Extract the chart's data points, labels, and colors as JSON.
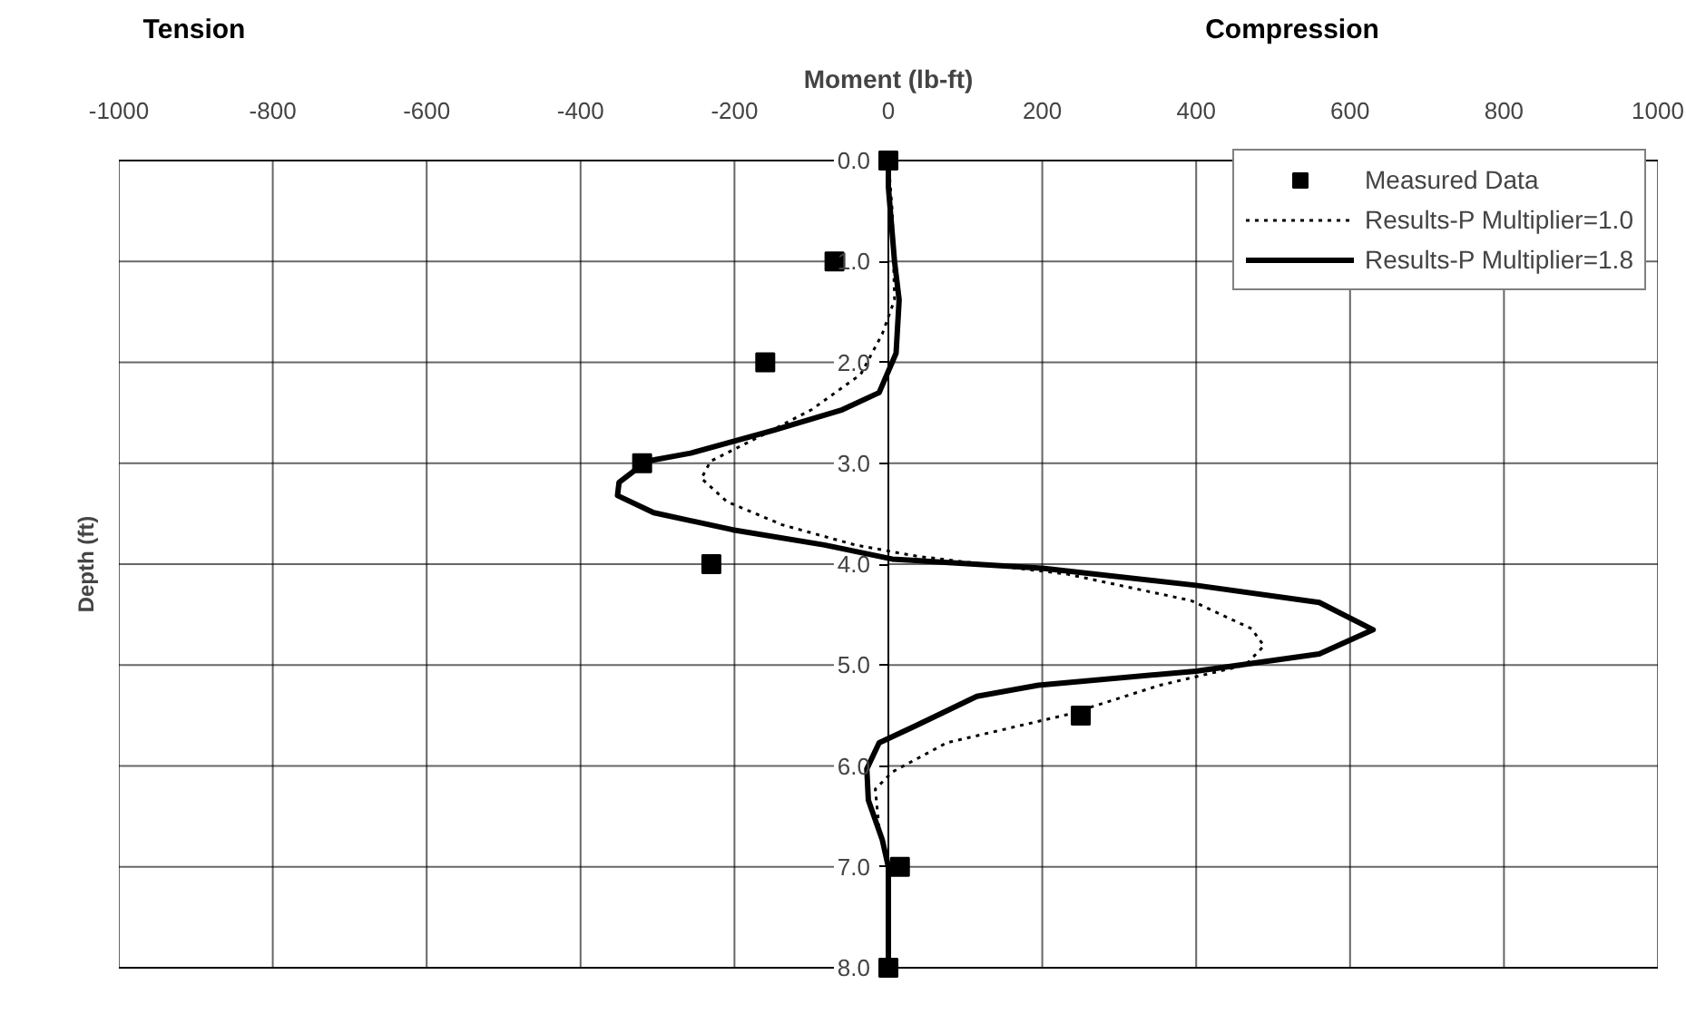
{
  "chart_data": {
    "type": "line",
    "xlabel": "Moment (lb-ft)",
    "ylabel": "Depth (ft)",
    "annotations": [
      "Tension",
      "Compression"
    ],
    "xlim": [
      -1000,
      1000
    ],
    "xticks": [
      -1000,
      -800,
      -600,
      -400,
      -200,
      0,
      200,
      400,
      600,
      800,
      1000
    ],
    "ylim": [
      8,
      0
    ],
    "yticks": [
      {
        "value": 0,
        "label": "0.0"
      },
      {
        "value": 1,
        "label": "1.0"
      },
      {
        "value": 2,
        "label": "2.0"
      },
      {
        "value": 3,
        "label": "3.0"
      },
      {
        "value": 4,
        "label": "4.0"
      },
      {
        "value": 5,
        "label": "5.0"
      },
      {
        "value": 6,
        "label": "6.0"
      },
      {
        "value": 7,
        "label": "7.0"
      },
      {
        "value": 8,
        "label": "8.0"
      }
    ],
    "grid": true,
    "legend": "top right",
    "series": [
      {
        "name": "Measured Data",
        "type": "scatter",
        "marker": "square",
        "color": "#000000",
        "x": [
          0,
          -70,
          -160,
          -320,
          -230,
          250,
          15,
          0
        ],
        "values": [
          0,
          1,
          2,
          3,
          4,
          5.5,
          7,
          8
        ]
      },
      {
        "name": "Results-P Multiplier=1.0",
        "line_style": "dotted",
        "color": "#000000",
        "x": [
          0,
          5,
          8,
          -8,
          -36,
          -100,
          -171,
          -231,
          -243,
          -210,
          -138,
          -43,
          36,
          233,
          393,
          472,
          488,
          464,
          353,
          233,
          76,
          5,
          -17,
          -12,
          0,
          0
        ],
        "values": [
          0,
          0.5,
          1.38,
          1.72,
          2.12,
          2.47,
          2.75,
          2.98,
          3.15,
          3.38,
          3.61,
          3.81,
          3.92,
          4.1,
          4.36,
          4.64,
          4.81,
          5.0,
          5.2,
          5.49,
          5.77,
          6.06,
          6.23,
          6.62,
          7.0,
          8.0
        ]
      },
      {
        "name": "Results-P Multiplier=1.8",
        "line_style": "solid",
        "color": "#000000",
        "x": [
          0,
          0,
          8,
          14,
          10,
          -12,
          -60,
          -148,
          -257,
          -314,
          -350,
          -352,
          -305,
          -202,
          -83,
          5,
          200,
          400,
          560,
          630,
          560,
          400,
          195,
          115,
          36,
          -12,
          -28,
          -26,
          -8,
          0,
          0
        ],
        "values": [
          0,
          0.26,
          1.0,
          1.38,
          1.91,
          2.3,
          2.47,
          2.67,
          2.9,
          2.98,
          3.19,
          3.32,
          3.49,
          3.66,
          3.81,
          3.95,
          4.04,
          4.21,
          4.38,
          4.65,
          4.89,
          5.06,
          5.2,
          5.31,
          5.6,
          5.77,
          6.03,
          6.34,
          6.73,
          7.0,
          8.0
        ]
      }
    ]
  }
}
